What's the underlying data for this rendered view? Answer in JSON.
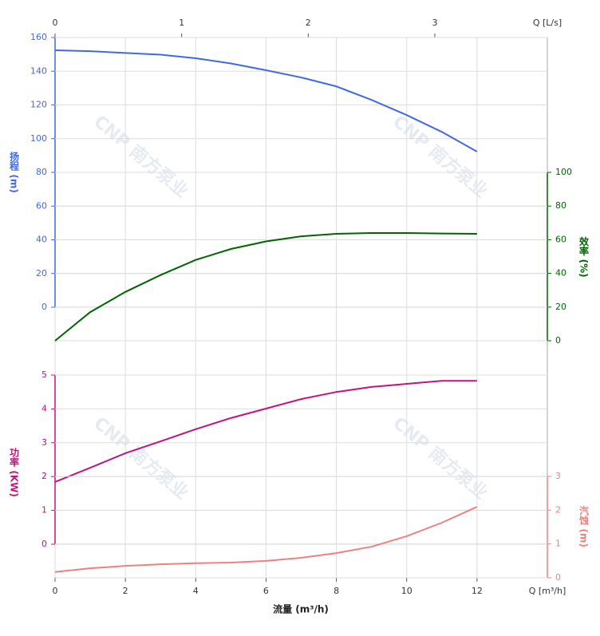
{
  "chart_data": [
    {
      "type": "line",
      "ylabel": "扬程 (m)",
      "color": "#4169e1",
      "xlabel": "流量 (m³/h)",
      "xunit": "Q [m³/h]",
      "xlim": [
        0,
        14
      ],
      "xticks": [
        0,
        2,
        4,
        6,
        8,
        10,
        12
      ],
      "x2label": "Q [L/s]",
      "x2lim": [
        0,
        3.889
      ],
      "x2ticks": [
        0,
        1,
        2,
        3
      ],
      "grid": true,
      "ylim": [
        0,
        160
      ],
      "yticks": [
        0,
        20,
        40,
        60,
        80,
        100,
        120,
        140,
        160
      ],
      "x": [
        0,
        1,
        2,
        3,
        4,
        5,
        6,
        7,
        8,
        9,
        10,
        11,
        12
      ],
      "series": [
        {
          "values": [
            152.4,
            151.9,
            150.8,
            149.8,
            147.7,
            144.6,
            140.6,
            136.3,
            131,
            123,
            114,
            104,
            92.3
          ]
        }
      ]
    },
    {
      "type": "line",
      "ylabel": "效率 (%)",
      "color": "#006400",
      "grid": true,
      "ylim": [
        0,
        100
      ],
      "yticks": [
        0,
        20,
        40,
        60,
        80,
        100
      ],
      "x": [
        0,
        1,
        2,
        3,
        4,
        5,
        6,
        7,
        8,
        9,
        10,
        11,
        12
      ],
      "series": [
        {
          "values": [
            0,
            17,
            29,
            39,
            48,
            54.5,
            59,
            62,
            63.5,
            64,
            64,
            63.7,
            63.5
          ]
        }
      ]
    },
    {
      "type": "line",
      "ylabel": "功率 (KW)",
      "color": "#c0147e",
      "grid": true,
      "ylim": [
        0,
        5
      ],
      "yticks": [
        0,
        1,
        2,
        3,
        4,
        5
      ],
      "x": [
        0,
        1,
        2,
        3,
        4,
        5,
        6,
        7,
        8,
        9,
        10,
        11,
        12
      ],
      "series": [
        {
          "values": [
            1.84,
            2.26,
            2.69,
            3.04,
            3.4,
            3.73,
            4.01,
            4.29,
            4.5,
            4.65,
            4.74,
            4.83,
            4.83
          ]
        }
      ]
    },
    {
      "type": "line",
      "ylabel": "汽蚀 (m)",
      "color": "#f08080",
      "grid": true,
      "ylim": [
        0,
        3
      ],
      "yticks": [
        0,
        1,
        2,
        3
      ],
      "x": [
        0,
        1,
        2,
        3,
        4,
        5,
        6,
        7,
        8,
        9,
        10,
        11,
        12
      ],
      "series": [
        {
          "values": [
            0.17,
            0.28,
            0.35,
            0.4,
            0.43,
            0.45,
            0.5,
            0.59,
            0.73,
            0.92,
            1.23,
            1.63,
            2.1
          ]
        }
      ]
    }
  ],
  "watermark": "CNP 南方泵业"
}
